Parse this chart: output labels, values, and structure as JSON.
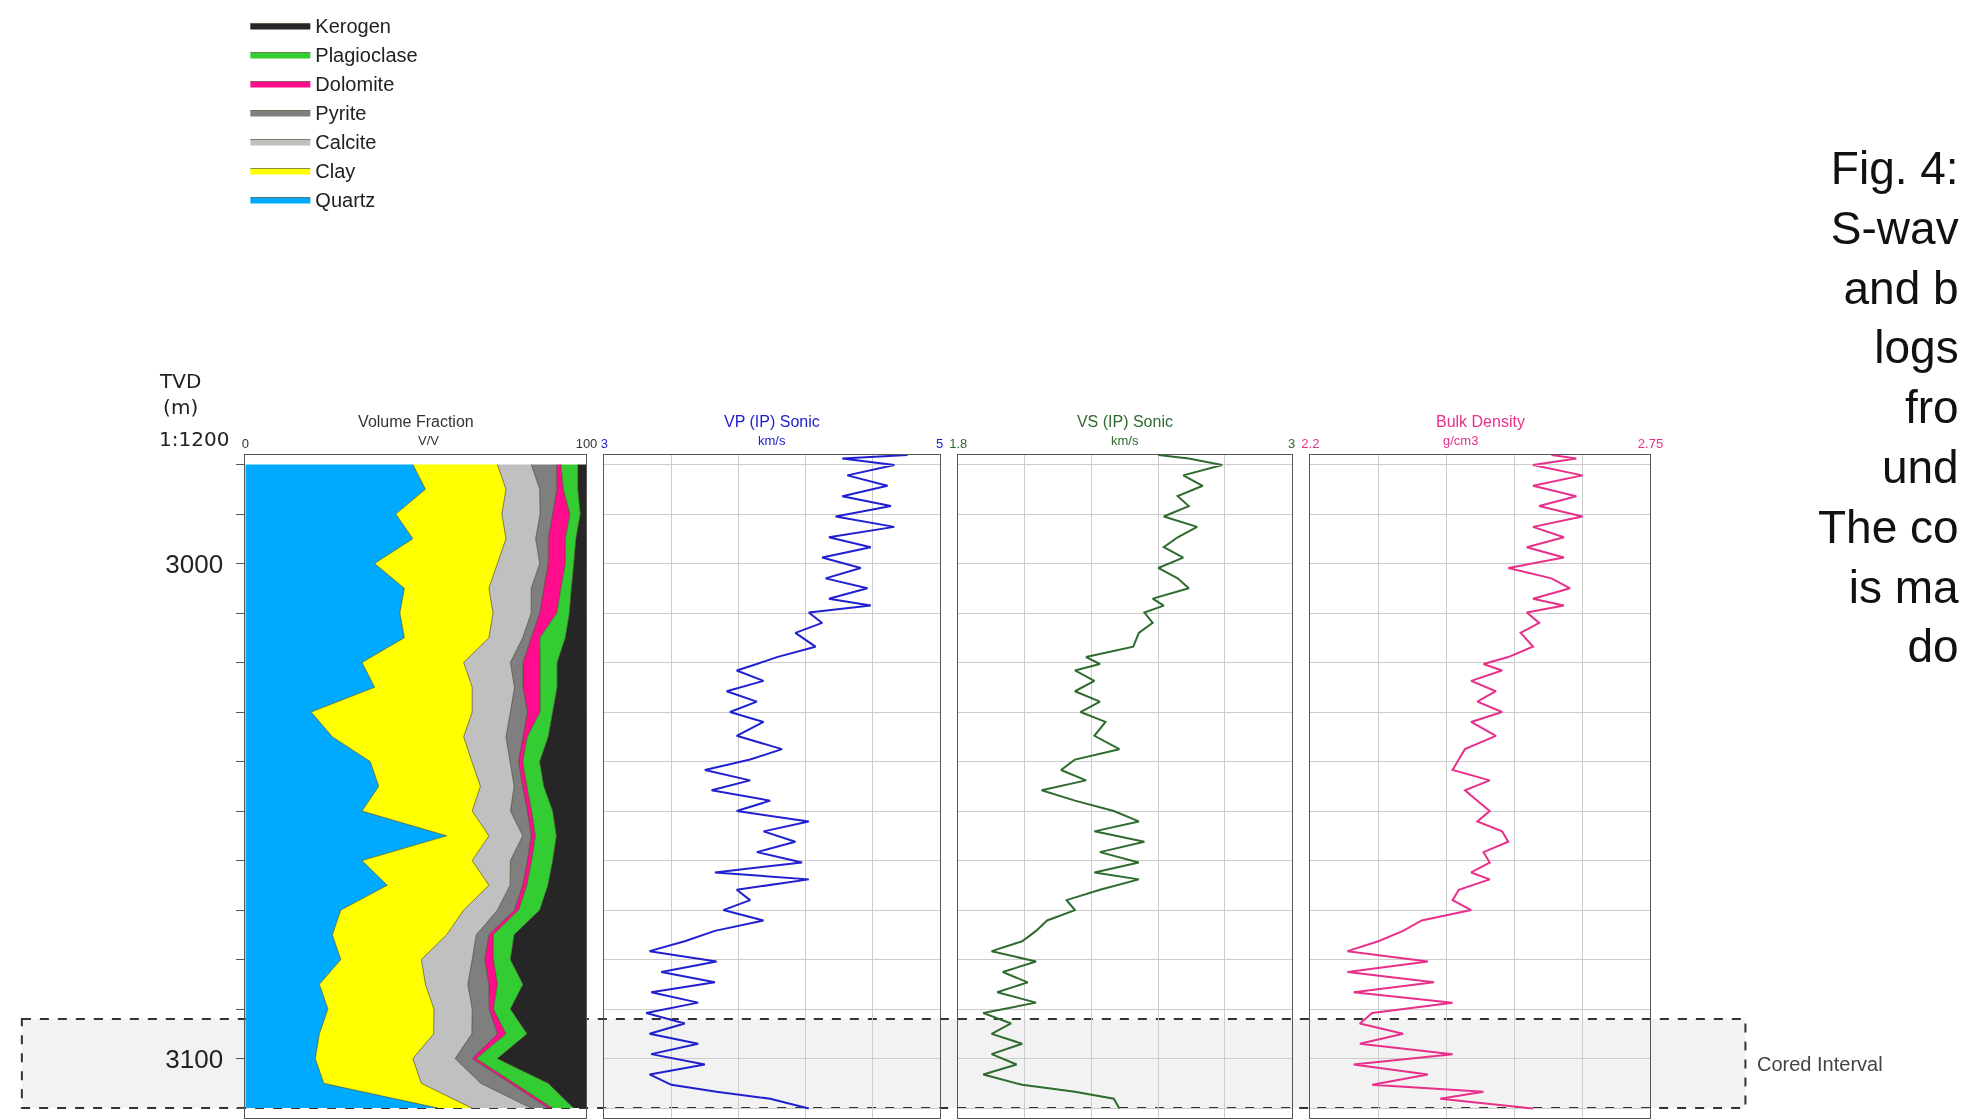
{
  "chart_data": [
    {
      "type": "area",
      "stacked": true,
      "orientation": "horizontal",
      "xlabel": "Volume Fraction",
      "ylabel": "TVD\n(m)",
      "legend": "top left",
      "grid": false,
      "annotations": [
        "V/V",
        "1:1200"
      ],
      "xlim": [
        0,
        100
      ],
      "xticks": [
        0,
        100
      ],
      "ylim": [
        3112,
        2978
      ],
      "yticks": [
        {
          "value": 2980,
          "label": null
        },
        {
          "value": 2990,
          "label": null
        },
        3000,
        {
          "value": 3010,
          "label": null
        },
        {
          "value": 3020,
          "label": null
        },
        {
          "value": 3030,
          "label": null
        },
        {
          "value": 3040,
          "label": null
        },
        {
          "value": 3050,
          "label": null
        },
        {
          "value": 3060,
          "label": null
        },
        {
          "value": 3070,
          "label": null
        },
        {
          "value": 3080,
          "label": null
        },
        {
          "value": 3090,
          "label": null
        },
        3100,
        {
          "value": 3110,
          "label": null
        }
      ],
      "x": [
        2980,
        2985,
        2990,
        2995,
        3000,
        3005,
        3010,
        3015,
        3020,
        3025,
        3030,
        3035,
        3040,
        3045,
        3050,
        3055,
        3060,
        3065,
        3070,
        3075,
        3080,
        3085,
        3090,
        3095,
        3100,
        3105,
        3110
      ],
      "series": [
        {
          "name": "Quartz",
          "color": "#00aaff",
          "values": [
            49.1,
            52.8,
            44.1,
            49.1,
            37.9,
            46.6,
            45.3,
            46.6,
            34.2,
            37.9,
            19.3,
            25.5,
            36.6,
            39.1,
            34.2,
            59.0,
            34.2,
            41.6,
            28.0,
            25.5,
            28.0,
            21.7,
            24.2,
            21.7,
            20.5,
            23.0,
            56.5
          ]
        },
        {
          "name": "Clay",
          "color": "#ffff00",
          "values": [
            24.8,
            23.6,
            31.1,
            27.3,
            36.0,
            24.8,
            27.3,
            24.8,
            29.8,
            28.6,
            47.2,
            38.5,
            29.8,
            29.8,
            32.3,
            12.4,
            32.3,
            29.8,
            36.0,
            33.5,
            23.6,
            31.1,
            31.1,
            33.5,
            28.6,
            28.6,
            9.9
          ]
        },
        {
          "name": "Calcite",
          "color": "#c0c0c0",
          "values": [
            9.9,
            9.9,
            11.2,
            8.7,
            12.4,
            12.4,
            11.2,
            9.9,
            13.7,
            12.4,
            11.2,
            12.4,
            11.2,
            9.9,
            11.2,
            9.9,
            11.2,
            6.2,
            9.9,
            8.7,
            14.9,
            12.4,
            11.2,
            11.2,
            12.4,
            17.4,
            17.4
          ]
        },
        {
          "name": "Pyrite",
          "color": "#7f7f7f",
          "values": [
            7.5,
            5.0,
            3.7,
            3.7,
            2.5,
            3.7,
            2.5,
            2.5,
            3.7,
            2.5,
            5.0,
            5.0,
            2.5,
            2.5,
            5.0,
            2.5,
            5.0,
            3.7,
            5.0,
            3.7,
            3.7,
            6.2,
            5.0,
            7.5,
            5.0,
            8.7,
            5.0
          ]
        },
        {
          "name": "Dolomite",
          "color": "#ff0d8c",
          "values": [
            1.2,
            1.9,
            5.0,
            5.0,
            5.0,
            5.0,
            5.0,
            2.5,
            5.0,
            5.0,
            3.7,
            1.2,
            1.2,
            1.2,
            1.2,
            1.2,
            1.2,
            1.2,
            1.2,
            1.2,
            2.5,
            2.5,
            1.2,
            2.5,
            1.2,
            1.2,
            1.2
          ]
        },
        {
          "name": "Plagioclase",
          "color": "#33cc33",
          "values": [
            5.0,
            4.3,
            3.1,
            3.1,
            2.5,
            3.1,
            3.7,
            7.5,
            5.0,
            5.0,
            3.7,
            6.2,
            5.0,
            5.0,
            6.2,
            6.2,
            6.2,
            6.2,
            6.2,
            6.2,
            5.0,
            7.5,
            5.0,
            6.2,
            6.2,
            9.9,
            6.2
          ]
        },
        {
          "name": "Kerogen",
          "color": "#262626",
          "values": [
            2.5,
            2.5,
            1.9,
            3.1,
            3.7,
            4.3,
            5.0,
            6.2,
            8.7,
            8.7,
            9.9,
            11.2,
            13.7,
            12.4,
            9.9,
            8.7,
            9.9,
            11.2,
            13.7,
            21.1,
            22.4,
            18.6,
            22.4,
            17.4,
            26.1,
            11.2,
            3.7
          ]
        }
      ]
    },
    {
      "type": "line",
      "orientation": "horizontal",
      "xlabel": "VP (IP) Sonic",
      "color": "#2020d0",
      "grid": true,
      "tick_labels": "x",
      "annotations": [
        "km/s"
      ],
      "xlim": [
        3,
        5
      ],
      "xticks": [
        3,
        {
          "value": 3.4,
          "label": null
        },
        {
          "value": 3.8,
          "label": null
        },
        {
          "value": 4.2,
          "label": null
        },
        {
          "value": 4.6,
          "label": null
        },
        5
      ],
      "ylim": [
        3112,
        2978
      ],
      "yticks": [
        2980,
        2990,
        3000,
        3010,
        3020,
        3030,
        3040,
        3050,
        3060,
        3070,
        3080,
        3090,
        3100,
        3110
      ],
      "x": [
        2978.1,
        2978.8,
        2980.1,
        2982.2,
        2984.3,
        2986.4,
        2988.4,
        2990.5,
        2992.6,
        2994.7,
        2996.7,
        2998.8,
        3000.9,
        3003.0,
        3005.0,
        3007.1,
        3008.5,
        3009.9,
        3012.0,
        3014.0,
        3016.8,
        3018.9,
        3020.3,
        3021.6,
        3023.7,
        3025.8,
        3027.9,
        3030.0,
        3032.0,
        3034.8,
        3037.5,
        3039.6,
        3041.7,
        3043.8,
        3045.8,
        3047.9,
        3050.0,
        3052.1,
        3054.1,
        3056.2,
        3058.3,
        3060.4,
        3062.4,
        3063.8,
        3065.9,
        3068.0,
        3070.0,
        3072.1,
        3074.2,
        3076.3,
        3078.3,
        3080.4,
        3082.5,
        3084.6,
        3086.6,
        3088.7,
        3090.8,
        3092.9,
        3095.0,
        3097.0,
        3099.1,
        3101.2,
        3103.2,
        3105.3,
        3106.7,
        3108.1,
        3110.1
      ],
      "values": [
        4.81,
        4.42,
        4.73,
        4.45,
        4.69,
        4.42,
        4.71,
        4.38,
        4.73,
        4.34,
        4.59,
        4.3,
        4.53,
        4.32,
        4.57,
        4.34,
        4.59,
        4.22,
        4.3,
        4.14,
        4.26,
        4.03,
        3.91,
        3.79,
        3.95,
        3.73,
        3.91,
        3.75,
        3.95,
        3.79,
        4.06,
        3.87,
        3.6,
        3.87,
        3.64,
        3.99,
        3.79,
        4.22,
        3.95,
        4.14,
        3.91,
        4.18,
        3.66,
        4.22,
        3.79,
        3.87,
        3.71,
        3.95,
        3.66,
        3.48,
        3.27,
        3.67,
        3.34,
        3.66,
        3.28,
        3.56,
        3.25,
        3.48,
        3.27,
        3.56,
        3.28,
        3.6,
        3.27,
        3.4,
        3.67,
        3.99,
        4.22
      ]
    },
    {
      "type": "line",
      "orientation": "horizontal",
      "xlabel": "VS (IP) Sonic",
      "color": "#2e6b2e",
      "grid": true,
      "tick_labels": "x",
      "annotations": [
        "km/s"
      ],
      "xlim": [
        1.8,
        3
      ],
      "xticks": [
        1.8,
        {
          "value": 2.04,
          "label": null
        },
        {
          "value": 2.28,
          "label": null
        },
        {
          "value": 2.52,
          "label": null
        },
        {
          "value": 2.76,
          "label": null
        },
        3
      ],
      "ylim": [
        3112,
        2978
      ],
      "yticks": [
        2980,
        2990,
        3000,
        3010,
        3020,
        3030,
        3040,
        3050,
        3060,
        3070,
        3080,
        3090,
        3100,
        3110
      ],
      "x": [
        2978.1,
        2978.8,
        2980.1,
        2982.2,
        2984.3,
        2986.4,
        2988.4,
        2990.5,
        2992.6,
        2994.7,
        2996.7,
        2998.8,
        3000.9,
        3003.0,
        3005.0,
        3007.1,
        3008.5,
        3009.9,
        3012.0,
        3014.0,
        3016.8,
        3018.9,
        3020.3,
        3021.6,
        3023.7,
        3025.8,
        3027.9,
        3030.0,
        3032.0,
        3034.8,
        3037.5,
        3039.6,
        3041.7,
        3043.8,
        3045.8,
        3047.9,
        3050.0,
        3052.1,
        3054.1,
        3056.2,
        3058.3,
        3060.4,
        3062.4,
        3063.8,
        3065.9,
        3068.0,
        3070.0,
        3072.1,
        3074.2,
        3076.3,
        3078.3,
        3080.4,
        3082.5,
        3084.6,
        3086.6,
        3088.7,
        3090.8,
        3092.9,
        3095.0,
        3097.0,
        3099.1,
        3101.2,
        3103.2,
        3105.3,
        3106.7,
        3108.1,
        3110.1
      ],
      "values": [
        2.52,
        2.63,
        2.75,
        2.61,
        2.68,
        2.59,
        2.63,
        2.54,
        2.66,
        2.59,
        2.54,
        2.61,
        2.52,
        2.59,
        2.63,
        2.5,
        2.54,
        2.47,
        2.5,
        2.45,
        2.43,
        2.26,
        2.31,
        2.22,
        2.29,
        2.22,
        2.31,
        2.24,
        2.33,
        2.29,
        2.38,
        2.22,
        2.17,
        2.26,
        2.1,
        2.22,
        2.36,
        2.45,
        2.29,
        2.47,
        2.31,
        2.45,
        2.29,
        2.45,
        2.31,
        2.19,
        2.22,
        2.12,
        2.08,
        2.03,
        1.92,
        2.08,
        1.96,
        2.05,
        1.94,
        2.08,
        1.89,
        1.99,
        1.92,
        2.03,
        1.92,
        2.01,
        1.89,
        2.03,
        2.22,
        2.36,
        2.38
      ]
    },
    {
      "type": "line",
      "orientation": "horizontal",
      "xlabel": "Bulk Density",
      "color": "#e8308a",
      "grid": true,
      "tick_labels": "x",
      "annotations": [
        "g/cm3",
        "Fig. 4:\nS-wav\nand b\nlogs\nfro\nund\nThe co\nis ma\ndo"
      ],
      "bands": [
        {
          "axis": "y",
          "from": 3092,
          "to": 3110,
          "label": "Cored Interval",
          "color": "#f2f2f2"
        }
      ],
      "xlim": [
        2.2,
        2.75
      ],
      "xticks": [
        2.2,
        {
          "value": 2.31,
          "label": null
        },
        {
          "value": 2.42,
          "label": null
        },
        {
          "value": 2.53,
          "label": null
        },
        {
          "value": 2.64,
          "label": null
        },
        2.75
      ],
      "ylim": [
        3112,
        2978
      ],
      "yticks": [
        2980,
        2990,
        3000,
        3010,
        3020,
        3030,
        3040,
        3050,
        3060,
        3070,
        3080,
        3090,
        3100,
        3110
      ],
      "x": [
        2978.1,
        2978.8,
        2980.1,
        2982.2,
        2984.3,
        2986.4,
        2988.4,
        2990.5,
        2992.6,
        2994.7,
        2996.7,
        2998.8,
        3000.9,
        3003.0,
        3005.0,
        3007.1,
        3008.5,
        3009.9,
        3012.0,
        3014.0,
        3016.8,
        3018.9,
        3020.3,
        3021.6,
        3023.7,
        3025.8,
        3027.9,
        3030.0,
        3032.0,
        3034.8,
        3037.5,
        3039.6,
        3041.7,
        3043.8,
        3045.8,
        3047.9,
        3050.0,
        3052.1,
        3054.1,
        3056.2,
        3058.3,
        3060.4,
        3062.4,
        3063.8,
        3065.9,
        3068.0,
        3070.0,
        3072.1,
        3074.2,
        3076.3,
        3078.3,
        3080.4,
        3082.5,
        3084.6,
        3086.6,
        3088.7,
        3090.8,
        3092.9,
        3095.0,
        3097.0,
        3099.1,
        3101.2,
        3103.2,
        3105.3,
        3106.7,
        3108.1,
        3110.1
      ],
      "values": [
        2.59,
        2.63,
        2.56,
        2.64,
        2.56,
        2.63,
        2.57,
        2.64,
        2.56,
        2.61,
        2.55,
        2.61,
        2.52,
        2.59,
        2.62,
        2.56,
        2.61,
        2.55,
        2.57,
        2.54,
        2.56,
        2.52,
        2.48,
        2.51,
        2.46,
        2.5,
        2.47,
        2.51,
        2.46,
        2.5,
        2.45,
        2.44,
        2.43,
        2.49,
        2.45,
        2.47,
        2.49,
        2.47,
        2.51,
        2.52,
        2.48,
        2.49,
        2.46,
        2.49,
        2.44,
        2.43,
        2.46,
        2.38,
        2.35,
        2.31,
        2.26,
        2.39,
        2.26,
        2.4,
        2.27,
        2.43,
        2.3,
        2.28,
        2.35,
        2.28,
        2.43,
        2.27,
        2.39,
        2.3,
        2.48,
        2.41,
        2.56
      ]
    }
  ]
}
